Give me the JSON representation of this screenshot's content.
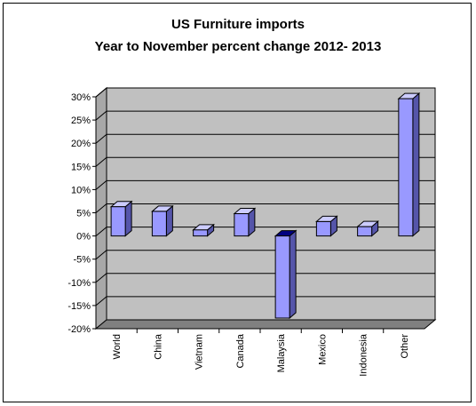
{
  "chart_data": {
    "type": "bar",
    "title": "US Furniture imports",
    "subtitle": "Year to November percent change 2012- 2013",
    "categories": [
      "World",
      "China",
      "Vietnam",
      "Canada",
      "Malaysia",
      "Mexico",
      "Indonesia",
      "Other"
    ],
    "values": [
      6.3,
      5.3,
      1.3,
      4.8,
      -17.7,
      3.1,
      2.0,
      29.6
    ],
    "ylim": [
      -20,
      30
    ],
    "yticks": [
      30,
      25,
      20,
      15,
      10,
      5,
      0,
      -5,
      -10,
      -15,
      -20
    ],
    "ytick_labels": [
      "30%",
      "25%",
      "20%",
      "15%",
      "10%",
      "5%",
      "0%",
      "-5%",
      "-10%",
      "-15%",
      "-20%"
    ],
    "grid": true,
    "colors": {
      "bar_face": "#9999ff",
      "bar_side": "#5555aa",
      "bar_top": "#ccccff",
      "wall": "#c0c0c0",
      "floor": "#808080"
    }
  }
}
